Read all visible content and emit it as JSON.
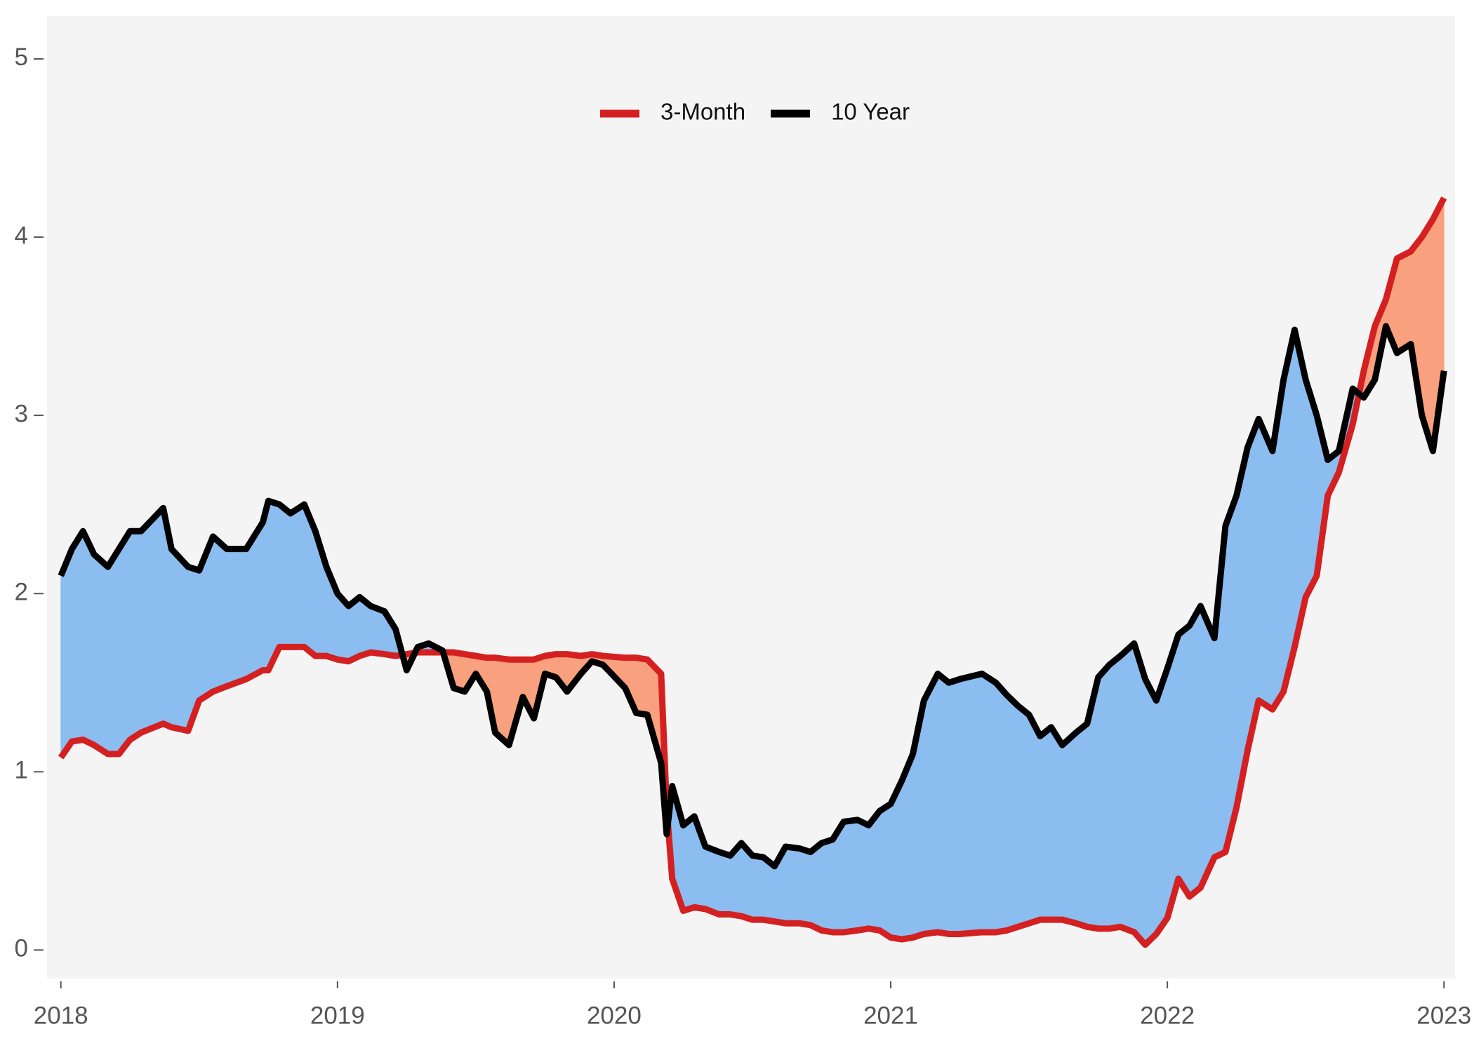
{
  "chart_data": {
    "type": "line",
    "x": [
      2018.0,
      2018.04,
      2018.08,
      2018.12,
      2018.17,
      2018.21,
      2018.25,
      2018.29,
      2018.37,
      2018.4,
      2018.46,
      2018.5,
      2018.55,
      2018.6,
      2018.67,
      2018.73,
      2018.75,
      2018.79,
      2018.83,
      2018.88,
      2018.92,
      2018.96,
      2019.0,
      2019.04,
      2019.08,
      2019.12,
      2019.17,
      2019.21,
      2019.25,
      2019.29,
      2019.33,
      2019.38,
      2019.42,
      2019.46,
      2019.5,
      2019.54,
      2019.57,
      2019.62,
      2019.67,
      2019.71,
      2019.75,
      2019.79,
      2019.83,
      2019.88,
      2019.92,
      2019.96,
      2020.04,
      2020.08,
      2020.12,
      2020.17,
      2020.19,
      2020.21,
      2020.25,
      2020.29,
      2020.33,
      2020.38,
      2020.42,
      2020.46,
      2020.5,
      2020.54,
      2020.58,
      2020.62,
      2020.67,
      2020.71,
      2020.75,
      2020.79,
      2020.83,
      2020.88,
      2020.92,
      2020.96,
      2021.0,
      2021.04,
      2021.08,
      2021.12,
      2021.17,
      2021.21,
      2021.25,
      2021.33,
      2021.38,
      2021.42,
      2021.46,
      2021.5,
      2021.54,
      2021.58,
      2021.62,
      2021.67,
      2021.71,
      2021.75,
      2021.79,
      2021.83,
      2021.88,
      2021.92,
      2021.96,
      2022.0,
      2022.04,
      2022.08,
      2022.12,
      2022.17,
      2022.21,
      2022.25,
      2022.29,
      2022.33,
      2022.38,
      2022.42,
      2022.46,
      2022.5,
      2022.54,
      2022.58,
      2022.62,
      2022.67,
      2022.71,
      2022.75,
      2022.79,
      2022.83,
      2022.88,
      2022.92,
      2022.96,
      2023.0
    ],
    "series": [
      {
        "name": "3-Month",
        "color": "#d42020",
        "values": [
          1.08,
          1.17,
          1.18,
          1.15,
          1.1,
          1.1,
          1.18,
          1.22,
          1.27,
          1.25,
          1.23,
          1.4,
          1.45,
          1.48,
          1.52,
          1.57,
          1.57,
          1.7,
          1.7,
          1.7,
          1.65,
          1.65,
          1.63,
          1.62,
          1.65,
          1.67,
          1.66,
          1.65,
          1.66,
          1.67,
          1.67,
          1.67,
          1.67,
          1.66,
          1.65,
          1.64,
          1.64,
          1.63,
          1.63,
          1.63,
          1.65,
          1.66,
          1.66,
          1.65,
          1.66,
          1.65,
          1.64,
          1.64,
          1.63,
          1.55,
          0.8,
          0.4,
          0.22,
          0.24,
          0.23,
          0.2,
          0.2,
          0.19,
          0.17,
          0.17,
          0.16,
          0.15,
          0.15,
          0.14,
          0.11,
          0.1,
          0.1,
          0.11,
          0.12,
          0.11,
          0.07,
          0.06,
          0.07,
          0.09,
          0.1,
          0.09,
          0.09,
          0.1,
          0.1,
          0.11,
          0.13,
          0.15,
          0.17,
          0.17,
          0.17,
          0.15,
          0.13,
          0.12,
          0.12,
          0.13,
          0.1,
          0.03,
          0.09,
          0.18,
          0.4,
          0.3,
          0.35,
          0.52,
          0.55,
          0.8,
          1.12,
          1.4,
          1.35,
          1.45,
          1.7,
          1.98,
          2.1,
          2.55,
          2.68,
          2.95,
          3.25,
          3.5,
          3.65,
          3.88,
          3.92,
          4.0,
          4.1,
          4.22
        ]
      },
      {
        "name": "10 Year",
        "color": "#000000",
        "values": [
          2.1,
          2.25,
          2.35,
          2.22,
          2.15,
          2.25,
          2.35,
          2.35,
          2.48,
          2.25,
          2.15,
          2.13,
          2.32,
          2.25,
          2.25,
          2.4,
          2.52,
          2.5,
          2.45,
          2.5,
          2.35,
          2.15,
          2.0,
          1.93,
          1.98,
          1.93,
          1.9,
          1.8,
          1.57,
          1.7,
          1.72,
          1.68,
          1.47,
          1.45,
          1.55,
          1.45,
          1.22,
          1.15,
          1.42,
          1.3,
          1.55,
          1.53,
          1.45,
          1.55,
          1.62,
          1.6,
          1.47,
          1.33,
          1.32,
          1.05,
          0.65,
          0.92,
          0.7,
          0.75,
          0.58,
          0.55,
          0.53,
          0.6,
          0.53,
          0.52,
          0.47,
          0.58,
          0.57,
          0.55,
          0.6,
          0.62,
          0.72,
          0.73,
          0.7,
          0.78,
          0.82,
          0.95,
          1.1,
          1.4,
          1.55,
          1.5,
          1.52,
          1.55,
          1.5,
          1.43,
          1.37,
          1.32,
          1.2,
          1.25,
          1.15,
          1.22,
          1.27,
          1.53,
          1.6,
          1.65,
          1.72,
          1.52,
          1.4,
          1.58,
          1.77,
          1.82,
          1.93,
          1.75,
          2.38,
          2.55,
          2.82,
          2.98,
          2.8,
          3.2,
          3.48,
          3.2,
          3.0,
          2.75,
          2.8,
          3.15,
          3.1,
          3.2,
          3.5,
          3.35,
          3.4,
          3.0,
          2.8,
          3.25
        ]
      }
    ],
    "fill_above_color": "#8bbdf0",
    "fill_below_color": "#f9a07e",
    "xlim": [
      2017.95,
      2023.04
    ],
    "xticks": [
      2018,
      2019,
      2020,
      2021,
      2022,
      2023
    ],
    "ylim": [
      -0.16,
      5.24
    ],
    "yticks": [
      0,
      1,
      2,
      3,
      4,
      5
    ],
    "grid": false,
    "legend": "top"
  }
}
